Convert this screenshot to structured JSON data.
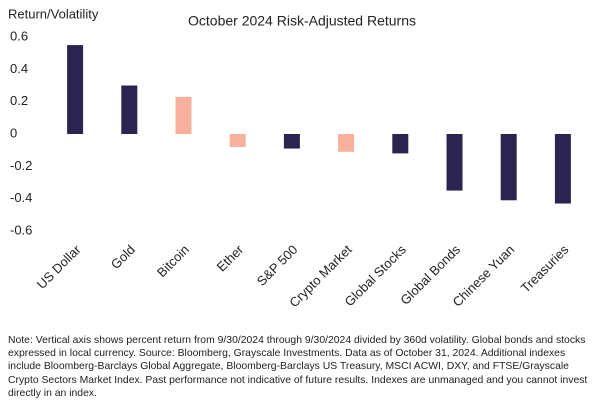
{
  "chart_data": {
    "type": "bar",
    "title": "October 2024 Risk-Adjusted Returns",
    "y_label": "Return/Volatility",
    "categories": [
      "US Dollar",
      "Gold",
      "Bitcoin",
      "Ether",
      "S&P 500",
      "Crypto Market",
      "Global Stocks",
      "Global Bonds",
      "Chinese Yuan",
      "Treasuries"
    ],
    "values": [
      0.55,
      0.3,
      0.23,
      -0.08,
      -0.09,
      -0.11,
      -0.12,
      -0.35,
      -0.41,
      -0.43
    ],
    "colors": [
      "#2b2350",
      "#2b2350",
      "#f7b09c",
      "#f7b09c",
      "#2b2350",
      "#f7b09c",
      "#2b2350",
      "#2b2350",
      "#2b2350",
      "#2b2350"
    ],
    "ylim": [
      -0.6,
      0.6
    ],
    "yticks": [
      -0.6,
      -0.4,
      -0.2,
      0,
      0.2,
      0.4,
      0.6
    ],
    "note": "Note: Vertical axis shows percent return from 9/30/2024 through 9/30/2024 divided by 360d volatility. Global bonds and stocks expressed in local currency. Source: Bloomberg, Grayscale Investments. Data as of October 31, 2024. Additional indexes include Bloomberg-Barclays Global Aggregate, Bloomberg-Barclays US Treasury, MSCI ACWI, DXY, and FTSE/Grayscale Crypto Sectors Market Index. Past performance not indicative of future results. Indexes are unmanaged and you cannot invest directly in an index."
  }
}
